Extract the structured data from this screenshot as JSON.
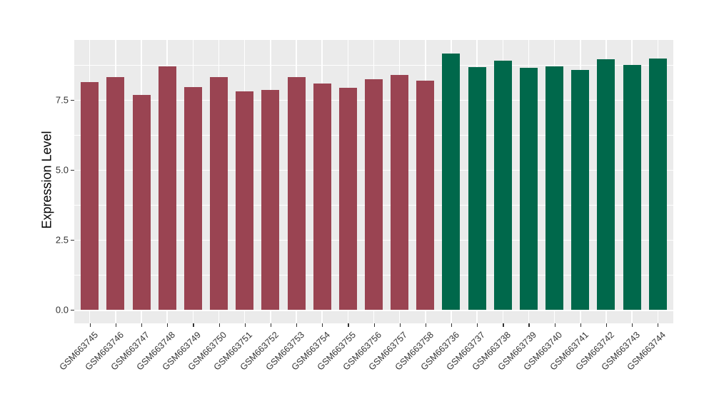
{
  "figure_title": "",
  "axes": {
    "y_title": "Expression Level",
    "x_title": "",
    "y_tick_labels": [
      "0.0",
      "2.5",
      "5.0",
      "7.5"
    ]
  },
  "colors": {
    "page_background": "#FFFFFF",
    "panel_background": "#EBEBEB",
    "gridline": "#FFFFFF",
    "tick": "#333333",
    "tick_label": "#333333",
    "group1_bar": "#9A4452",
    "group2_bar": "#00684B"
  },
  "chart_data": {
    "type": "bar",
    "title": "",
    "xlabel": "",
    "ylabel": "Expression Level",
    "ylim": [
      -0.48,
      9.63
    ],
    "ytick_values": [
      0,
      2.5,
      5,
      7.5
    ],
    "minor_gridline_values": [
      1.25,
      3.75,
      6.25,
      8.75
    ],
    "grid": true,
    "legend": false,
    "categories": [
      "GSM663745",
      "GSM663746",
      "GSM663747",
      "GSM663748",
      "GSM663749",
      "GSM663750",
      "GSM663751",
      "GSM663752",
      "GSM663753",
      "GSM663754",
      "GSM663755",
      "GSM663756",
      "GSM663757",
      "GSM663758",
      "GSM663736",
      "GSM663737",
      "GSM663738",
      "GSM663739",
      "GSM663740",
      "GSM663741",
      "GSM663742",
      "GSM663743",
      "GSM663744"
    ],
    "values": [
      8.13,
      8.31,
      7.67,
      8.68,
      7.94,
      8.3,
      7.8,
      7.84,
      8.3,
      8.08,
      7.93,
      8.24,
      8.37,
      8.19,
      9.15,
      8.65,
      8.9,
      8.64,
      8.68,
      8.55,
      8.94,
      8.73,
      8.98
    ],
    "bar_groups": [
      0,
      0,
      0,
      0,
      0,
      0,
      0,
      0,
      0,
      0,
      0,
      0,
      0,
      0,
      1,
      1,
      1,
      1,
      1,
      1,
      1,
      1,
      1
    ],
    "group_colors": [
      "#9A4452",
      "#00684B"
    ]
  }
}
